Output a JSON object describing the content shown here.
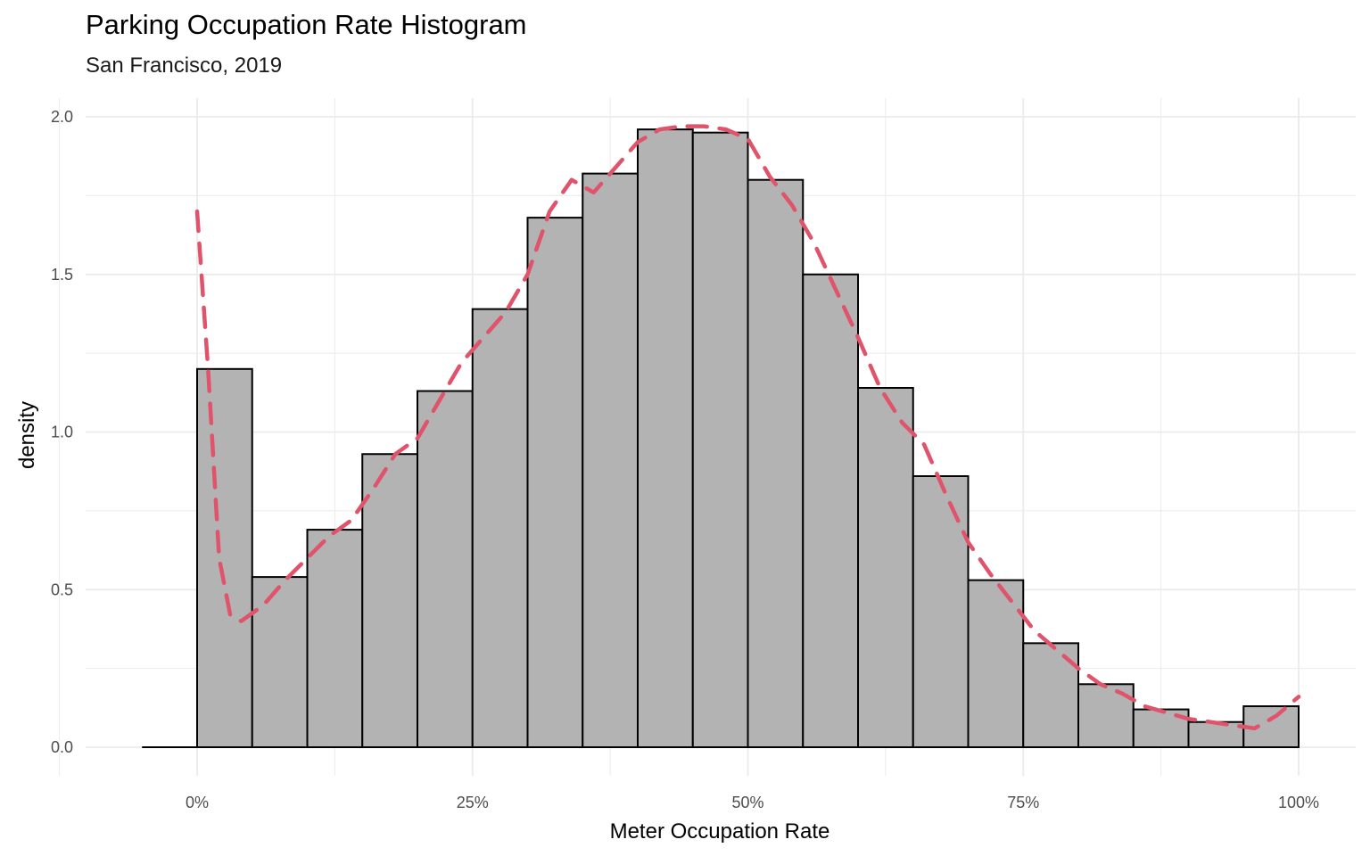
{
  "chart_data": {
    "type": "bar",
    "title": "Parking Occupation Rate Histogram",
    "subtitle": "San Francisco, 2019",
    "xlabel": "Meter Occupation Rate",
    "ylabel": "density",
    "xlim": [
      -0.1,
      1.05
    ],
    "ylim": [
      0,
      2.0
    ],
    "x_ticks": [
      {
        "value": 0.0,
        "label": "0%"
      },
      {
        "value": 0.25,
        "label": "25%"
      },
      {
        "value": 0.5,
        "label": "50%"
      },
      {
        "value": 0.75,
        "label": "75%"
      },
      {
        "value": 1.0,
        "label": "100%"
      }
    ],
    "y_ticks": [
      {
        "value": 0.0,
        "label": "0.0"
      },
      {
        "value": 0.5,
        "label": "0.5"
      },
      {
        "value": 1.0,
        "label": "1.0"
      },
      {
        "value": 1.5,
        "label": "1.5"
      },
      {
        "value": 2.0,
        "label": "2.0"
      }
    ],
    "grid": true,
    "bin_width": 0.05,
    "bins": [
      {
        "x0": 0.0,
        "x1": 0.05,
        "density": 1.2
      },
      {
        "x0": 0.05,
        "x1": 0.1,
        "density": 0.54
      },
      {
        "x0": 0.1,
        "x1": 0.15,
        "density": 0.69
      },
      {
        "x0": 0.15,
        "x1": 0.2,
        "density": 0.93
      },
      {
        "x0": 0.2,
        "x1": 0.25,
        "density": 1.13
      },
      {
        "x0": 0.25,
        "x1": 0.3,
        "density": 1.39
      },
      {
        "x0": 0.3,
        "x1": 0.35,
        "density": 1.68
      },
      {
        "x0": 0.35,
        "x1": 0.4,
        "density": 1.82
      },
      {
        "x0": 0.4,
        "x1": 0.45,
        "density": 1.96
      },
      {
        "x0": 0.45,
        "x1": 0.5,
        "density": 1.95
      },
      {
        "x0": 0.5,
        "x1": 0.55,
        "density": 1.8
      },
      {
        "x0": 0.55,
        "x1": 0.6,
        "density": 1.5
      },
      {
        "x0": 0.6,
        "x1": 0.65,
        "density": 1.14
      },
      {
        "x0": 0.65,
        "x1": 0.7,
        "density": 0.86
      },
      {
        "x0": 0.7,
        "x1": 0.75,
        "density": 0.53
      },
      {
        "x0": 0.75,
        "x1": 0.8,
        "density": 0.33
      },
      {
        "x0": 0.8,
        "x1": 0.85,
        "density": 0.2
      },
      {
        "x0": 0.85,
        "x1": 0.9,
        "density": 0.12
      },
      {
        "x0": 0.9,
        "x1": 0.95,
        "density": 0.08
      },
      {
        "x0": 0.95,
        "x1": 1.0,
        "density": 0.13
      }
    ],
    "baseline_x_range": [
      -0.05,
      0.0
    ],
    "density_curve": {
      "style": "dashed",
      "color": "#DF536B",
      "x": [
        0.0,
        0.01,
        0.02,
        0.03,
        0.04,
        0.06,
        0.08,
        0.1,
        0.12,
        0.14,
        0.16,
        0.18,
        0.2,
        0.22,
        0.24,
        0.26,
        0.28,
        0.3,
        0.32,
        0.34,
        0.36,
        0.38,
        0.4,
        0.42,
        0.44,
        0.46,
        0.48,
        0.5,
        0.52,
        0.54,
        0.56,
        0.58,
        0.6,
        0.62,
        0.64,
        0.66,
        0.68,
        0.7,
        0.72,
        0.74,
        0.76,
        0.78,
        0.8,
        0.82,
        0.84,
        0.86,
        0.88,
        0.9,
        0.92,
        0.94,
        0.96,
        0.98,
        1.0
      ],
      "y": [
        1.7,
        1.2,
        0.6,
        0.42,
        0.4,
        0.45,
        0.53,
        0.6,
        0.67,
        0.72,
        0.82,
        0.93,
        0.98,
        1.1,
        1.22,
        1.3,
        1.38,
        1.5,
        1.7,
        1.8,
        1.76,
        1.84,
        1.92,
        1.96,
        1.97,
        1.97,
        1.96,
        1.93,
        1.81,
        1.72,
        1.6,
        1.45,
        1.3,
        1.14,
        1.03,
        0.96,
        0.8,
        0.65,
        0.55,
        0.46,
        0.37,
        0.31,
        0.25,
        0.2,
        0.17,
        0.13,
        0.11,
        0.09,
        0.08,
        0.07,
        0.06,
        0.1,
        0.16
      ]
    },
    "colors": {
      "bar_fill": "#B3B3B3",
      "bar_stroke": "#000000",
      "grid": "#EBEBEB",
      "curve": "#DF536B"
    }
  }
}
